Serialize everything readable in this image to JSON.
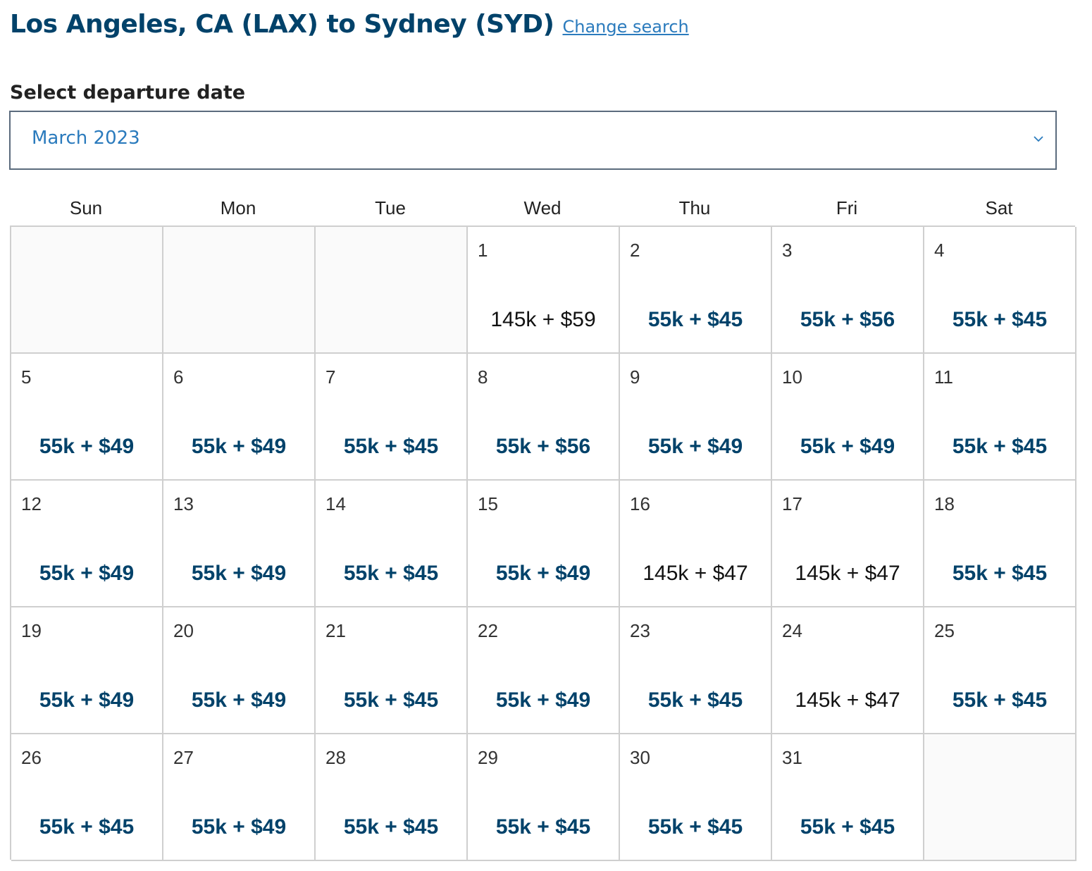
{
  "header": {
    "title": "Los Angeles, CA (LAX) to Sydney (SYD)",
    "change_search": "Change search"
  },
  "date_select": {
    "label": "Select departure date",
    "selected_month": "March 2023"
  },
  "calendar": {
    "weekdays": [
      "Sun",
      "Mon",
      "Tue",
      "Wed",
      "Thu",
      "Fri",
      "Sat"
    ],
    "leading_blanks": 3,
    "trailing_blanks": 1,
    "days": [
      {
        "day": "1",
        "price": "145k + $59",
        "style": "main"
      },
      {
        "day": "2",
        "price": "55k + $45",
        "style": "saver"
      },
      {
        "day": "3",
        "price": "55k + $56",
        "style": "saver"
      },
      {
        "day": "4",
        "price": "55k + $45",
        "style": "saver"
      },
      {
        "day": "5",
        "price": "55k + $49",
        "style": "saver"
      },
      {
        "day": "6",
        "price": "55k + $49",
        "style": "saver"
      },
      {
        "day": "7",
        "price": "55k + $45",
        "style": "saver"
      },
      {
        "day": "8",
        "price": "55k + $56",
        "style": "saver"
      },
      {
        "day": "9",
        "price": "55k + $49",
        "style": "saver"
      },
      {
        "day": "10",
        "price": "55k + $49",
        "style": "saver"
      },
      {
        "day": "11",
        "price": "55k + $45",
        "style": "saver"
      },
      {
        "day": "12",
        "price": "55k + $49",
        "style": "saver"
      },
      {
        "day": "13",
        "price": "55k + $49",
        "style": "saver"
      },
      {
        "day": "14",
        "price": "55k + $45",
        "style": "saver"
      },
      {
        "day": "15",
        "price": "55k + $49",
        "style": "saver"
      },
      {
        "day": "16",
        "price": "145k + $47",
        "style": "main"
      },
      {
        "day": "17",
        "price": "145k + $47",
        "style": "main"
      },
      {
        "day": "18",
        "price": "55k + $45",
        "style": "saver"
      },
      {
        "day": "19",
        "price": "55k + $49",
        "style": "saver"
      },
      {
        "day": "20",
        "price": "55k + $49",
        "style": "saver"
      },
      {
        "day": "21",
        "price": "55k + $45",
        "style": "saver"
      },
      {
        "day": "22",
        "price": "55k + $49",
        "style": "saver"
      },
      {
        "day": "23",
        "price": "55k + $45",
        "style": "saver"
      },
      {
        "day": "24",
        "price": "145k + $47",
        "style": "main"
      },
      {
        "day": "25",
        "price": "55k + $45",
        "style": "saver"
      },
      {
        "day": "26",
        "price": "55k + $45",
        "style": "saver"
      },
      {
        "day": "27",
        "price": "55k + $49",
        "style": "saver"
      },
      {
        "day": "28",
        "price": "55k + $45",
        "style": "saver"
      },
      {
        "day": "29",
        "price": "55k + $45",
        "style": "saver"
      },
      {
        "day": "30",
        "price": "55k + $45",
        "style": "saver"
      },
      {
        "day": "31",
        "price": "55k + $45",
        "style": "saver"
      }
    ]
  },
  "colors": {
    "title": "#01426a",
    "link": "#2b7bbd",
    "saver_price": "#01426a",
    "main_price": "#111111",
    "grid_line": "#cfcfcf"
  },
  "icons": {
    "dropdown": "chevron-down-icon"
  }
}
